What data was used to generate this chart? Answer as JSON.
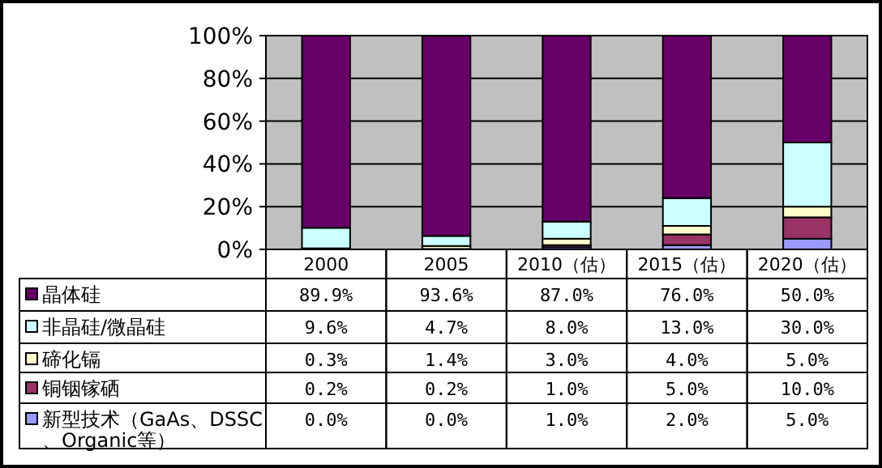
{
  "chart_data": {
    "type": "bar",
    "stacked": true,
    "categories": [
      "2000",
      "2005",
      "2010（估）",
      "2015（估）",
      "2020（估）"
    ],
    "ylim": [
      0,
      100
    ],
    "yticks": [
      {
        "value": 0,
        "label": "0%"
      },
      {
        "value": 20,
        "label": "20%"
      },
      {
        "value": 40,
        "label": "40%"
      },
      {
        "value": 60,
        "label": "60%"
      },
      {
        "value": 80,
        "label": "80%"
      },
      {
        "value": 100,
        "label": "100%"
      }
    ],
    "grid": "y",
    "legend": "bottom",
    "series": [
      {
        "name": "新型技术（GaAs、DSSC、Organic等）",
        "color": "#9999ff",
        "values": [
          0.0,
          0.0,
          1.0,
          2.0,
          5.0
        ],
        "value_labels": [
          "0.0%",
          "0.0%",
          "1.0%",
          "2.0%",
          "5.0%"
        ]
      },
      {
        "name": "铜铟镓硒",
        "color": "#993366",
        "values": [
          0.2,
          0.2,
          1.0,
          5.0,
          10.0
        ],
        "value_labels": [
          "0.2%",
          "0.2%",
          "1.0%",
          "5.0%",
          "10.0%"
        ]
      },
      {
        "name": "碲化镉",
        "color": "#ffffcc",
        "values": [
          0.3,
          1.4,
          3.0,
          4.0,
          5.0
        ],
        "value_labels": [
          "0.3%",
          "1.4%",
          "3.0%",
          "4.0%",
          "5.0%"
        ]
      },
      {
        "name": "非晶硅/微晶硅",
        "color": "#ccffff",
        "values": [
          9.6,
          4.7,
          8.0,
          13.0,
          30.0
        ],
        "value_labels": [
          "9.6%",
          "4.7%",
          "8.0%",
          "13.0%",
          "30.0%"
        ]
      },
      {
        "name": "晶体硅",
        "color": "#660066",
        "values": [
          89.9,
          93.6,
          87.0,
          76.0,
          50.0
        ],
        "value_labels": [
          "89.9%",
          "93.6%",
          "87.0%",
          "76.0%",
          "50.0%"
        ]
      }
    ]
  }
}
